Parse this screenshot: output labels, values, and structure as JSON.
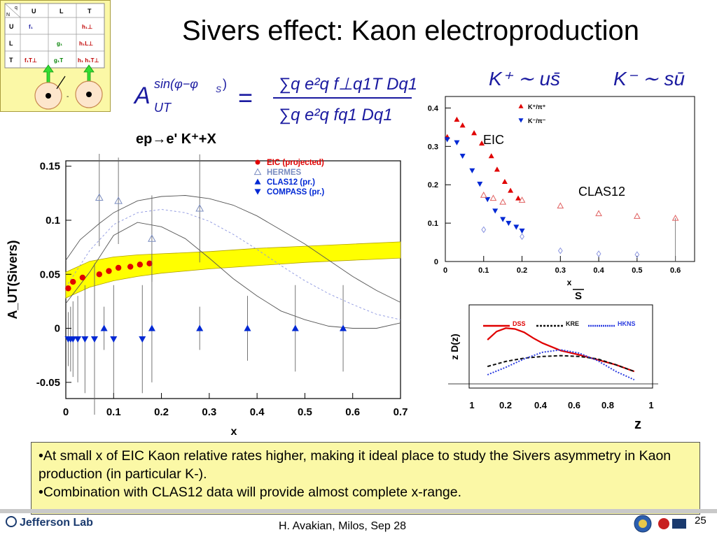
{
  "slide": {
    "title": "Sivers effect: Kaon electroproduction",
    "page_number": "25",
    "footer": "H. Avakian, Milos,  Sep 28",
    "logo": "Jefferson Lab"
  },
  "tmd_table": {
    "corner_top": "q",
    "corner_left": "N",
    "col_headers": [
      "U",
      "L",
      "T"
    ],
    "rows": [
      {
        "head": "U",
        "cells": [
          "f₁",
          "",
          "h₁⊥"
        ]
      },
      {
        "head": "L",
        "cells": [
          "",
          "g₁",
          "h₁L⊥"
        ]
      },
      {
        "head": "T",
        "cells": [
          "f₁T⊥",
          "g₁T",
          "h₁  h₁T⊥"
        ]
      }
    ]
  },
  "formula": {
    "lhs": "A",
    "lhs_sup": "sin(φ−φ",
    "lhs_sup_sub": "S",
    "lhs_sup_close": ")",
    "lhs_sub": "UT",
    "equals": "=",
    "numerator": "∑q e²q f⊥q1T Dq1",
    "denominator": "∑q e²q fq1 Dq1"
  },
  "kaon_relations": {
    "k_plus": "K⁺ ∼ us̄",
    "k_minus": "K⁻ ∼ sū"
  },
  "chart_data": [
    {
      "type": "scatter",
      "title": "ep→e' K⁺+X",
      "xlabel": "x",
      "ylabel": "A_UT(Sivers)",
      "xlim": [
        0,
        0.7
      ],
      "ylim": [
        -0.065,
        0.155
      ],
      "xticks": [
        "0",
        "0.1",
        "0.2",
        "0.3",
        "0.4",
        "0.5",
        "0.6",
        "0.7"
      ],
      "yticks": [
        "-0.05",
        "0",
        "0.05",
        "0.1",
        "0.15"
      ],
      "legend_position": "top-right",
      "series": [
        {
          "name": "EIC (projected)",
          "color": "#e00000",
          "marker": "circle",
          "x": [
            0.005,
            0.015,
            0.035,
            0.07,
            0.09,
            0.11,
            0.135,
            0.155,
            0.175
          ],
          "y": [
            0.037,
            0.043,
            0.047,
            0.05,
            0.053,
            0.056,
            0.057,
            0.059,
            0.06
          ]
        },
        {
          "name": "HERMES",
          "color": "#7a8cc0",
          "marker": "triangle-up-open",
          "x": [
            0.07,
            0.11,
            0.18,
            0.28
          ],
          "y": [
            0.121,
            0.118,
            0.083,
            0.111
          ],
          "err": [
            0.045,
            0.04,
            0.04,
            0.05
          ]
        },
        {
          "name": "CLAS12 (pr.)",
          "color": "#0028d4",
          "marker": "triangle-up",
          "x": [
            0.08,
            0.18,
            0.28,
            0.38,
            0.48,
            0.58
          ],
          "y": [
            0.0,
            0.0,
            0.0,
            0.0,
            0.0,
            0.0
          ],
          "err": [
            0.02,
            0.05,
            0.02,
            0.03,
            0.04,
            0.04
          ]
        },
        {
          "name": "COMPASS (pr.)",
          "color": "#0028d4",
          "marker": "triangle-down",
          "x": [
            0.005,
            0.01,
            0.015,
            0.025,
            0.04,
            0.06,
            0.1,
            0.16
          ],
          "y": [
            -0.01,
            -0.01,
            -0.01,
            -0.01,
            -0.01,
            -0.01,
            -0.01,
            -0.01
          ],
          "err": [
            0.025,
            0.03,
            0.035,
            0.04,
            0.05,
            0.07,
            0.05,
            0.05
          ]
        }
      ],
      "band": {
        "color": "#ffff00",
        "x": [
          0.0,
          0.05,
          0.1,
          0.15,
          0.2,
          0.3,
          0.4,
          0.5,
          0.6,
          0.7
        ],
        "lower": [
          0.028,
          0.038,
          0.044,
          0.048,
          0.051,
          0.055,
          0.058,
          0.061,
          0.063,
          0.065
        ],
        "upper": [
          0.052,
          0.062,
          0.066,
          0.068,
          0.069,
          0.071,
          0.074,
          0.076,
          0.078,
          0.08
        ]
      },
      "curves": [
        {
          "style": "solid",
          "color": "#555555",
          "x": [
            0.0,
            0.03,
            0.07,
            0.1,
            0.15,
            0.2,
            0.25,
            0.3,
            0.35,
            0.4,
            0.45,
            0.5,
            0.55,
            0.6,
            0.65,
            0.7
          ],
          "y": [
            0.063,
            0.082,
            0.097,
            0.107,
            0.118,
            0.122,
            0.123,
            0.12,
            0.114,
            0.104,
            0.091,
            0.078,
            0.063,
            0.048,
            0.035,
            0.024
          ]
        },
        {
          "style": "solid",
          "color": "#555555",
          "x": [
            0.0,
            0.05,
            0.1,
            0.15,
            0.2,
            0.25,
            0.3,
            0.35,
            0.4,
            0.45,
            0.5,
            0.55,
            0.6,
            0.65,
            0.7
          ],
          "y": [
            0.023,
            0.052,
            0.086,
            0.098,
            0.094,
            0.083,
            0.065,
            0.046,
            0.03,
            0.016,
            0.008,
            0.002,
            0.0,
            0.0,
            0.005
          ]
        },
        {
          "style": "dashed",
          "color": "#8c96e0",
          "x": [
            0.0,
            0.05,
            0.1,
            0.15,
            0.2,
            0.25,
            0.3,
            0.35,
            0.4,
            0.45,
            0.5,
            0.55,
            0.6,
            0.65,
            0.7
          ],
          "y": [
            0.038,
            0.072,
            0.096,
            0.107,
            0.11,
            0.107,
            0.099,
            0.087,
            0.073,
            0.058,
            0.044,
            0.032,
            0.022,
            0.013,
            0.008
          ]
        }
      ]
    },
    {
      "type": "scatter",
      "title": "",
      "xlabel": "x",
      "xlabel2": "S",
      "xlim": [
        0,
        0.65
      ],
      "ylim": [
        0,
        0.43
      ],
      "xticks": [
        "0",
        "0.1",
        "0.2",
        "0.3",
        "0.4",
        "0.5",
        "0.6"
      ],
      "yticks": [
        "0",
        "0.1",
        "0.2",
        "0.3",
        "0.4"
      ],
      "labels": {
        "eic": "EIC",
        "clas12": "CLAS12"
      },
      "series": [
        {
          "name": "K⁺/π⁺",
          "color": "#e00000",
          "marker": "triangle-up",
          "x": [
            0.005,
            0.03,
            0.045,
            0.075,
            0.095,
            0.12,
            0.135,
            0.155,
            0.17,
            0.19
          ],
          "y": [
            0.325,
            0.37,
            0.355,
            0.335,
            0.308,
            0.275,
            0.24,
            0.208,
            0.185,
            0.165
          ]
        },
        {
          "name": "K⁻/π⁻",
          "color": "#0028d4",
          "marker": "triangle-down",
          "x": [
            0.005,
            0.03,
            0.045,
            0.07,
            0.09,
            0.11,
            0.13,
            0.15,
            0.165,
            0.185,
            0.2
          ],
          "y": [
            0.318,
            0.31,
            0.275,
            0.237,
            0.202,
            0.162,
            0.132,
            0.11,
            0.1,
            0.09,
            0.08
          ]
        },
        {
          "name": "CLAS12 K⁺/π⁺",
          "color": "#e06060",
          "marker": "triangle-up-open",
          "x": [
            0.1,
            0.125,
            0.15,
            0.2,
            0.3,
            0.4,
            0.5,
            0.6
          ],
          "y": [
            0.173,
            0.165,
            0.155,
            0.16,
            0.145,
            0.125,
            0.118,
            0.113
          ]
        },
        {
          "name": "CLAS12 K⁻/π⁻",
          "color": "#8c96e0",
          "marker": "diamond-open",
          "x": [
            0.1,
            0.2,
            0.3,
            0.4,
            0.5
          ],
          "y": [
            0.083,
            0.065,
            0.028,
            0.02,
            0.018
          ]
        }
      ]
    },
    {
      "type": "line",
      "title": "",
      "xlabel": "z",
      "ylabel": "z D(z)",
      "xlim": [
        0,
        1
      ],
      "xticks": [
        "1",
        "0.2",
        "0.4",
        "0.6",
        "0.8",
        "1"
      ],
      "legend_position": "top",
      "series": [
        {
          "name": "DSS",
          "color": "#e00000",
          "style": "solid",
          "x": [
            0.1,
            0.15,
            0.2,
            0.25,
            0.3,
            0.35,
            0.4,
            0.5,
            0.6,
            0.7,
            0.8,
            0.9
          ],
          "y": [
            0.58,
            0.68,
            0.72,
            0.71,
            0.67,
            0.6,
            0.54,
            0.45,
            0.4,
            0.34,
            0.28,
            0.2
          ]
        },
        {
          "name": "KRE",
          "color": "#111111",
          "style": "dashed",
          "x": [
            0.1,
            0.2,
            0.3,
            0.4,
            0.5,
            0.6,
            0.7,
            0.8,
            0.9
          ],
          "y": [
            0.26,
            0.32,
            0.36,
            0.38,
            0.39,
            0.38,
            0.35,
            0.28,
            0.2
          ]
        },
        {
          "name": "HKNS",
          "color": "#2b3ce0",
          "style": "dotted",
          "x": [
            0.1,
            0.2,
            0.3,
            0.4,
            0.5,
            0.6,
            0.7,
            0.8,
            0.9
          ],
          "y": [
            0.16,
            0.25,
            0.35,
            0.43,
            0.46,
            0.42,
            0.33,
            0.2,
            0.1
          ]
        }
      ]
    }
  ],
  "summary": {
    "bullet1": "•At small x of EIC Kaon relative rates higher, making it ideal place to study the Sivers asymmetry in Kaon production (in particular K-).",
    "bullet2": "•Combination with CLAS12 data will provide almost complete x-range."
  }
}
